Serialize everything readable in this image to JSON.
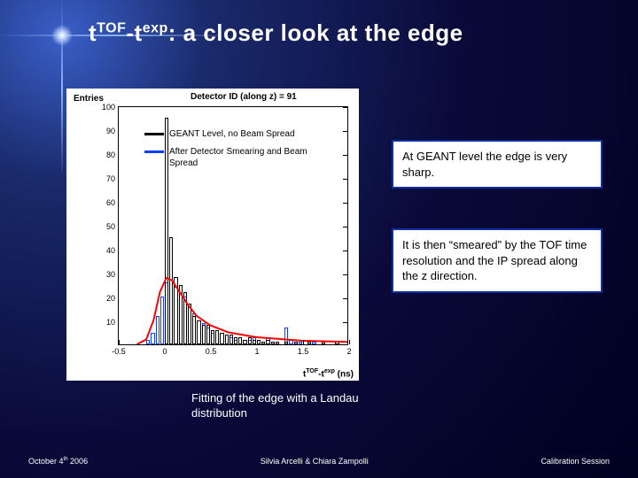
{
  "title": {
    "pre": "t",
    "sup1": "TOF",
    "mid": "-t",
    "sup2": "exp",
    "post": ": a closer look at the edge"
  },
  "chart": {
    "type": "histogram",
    "detector_title": "Detector ID (along z) = 91",
    "ylabel": "Entries",
    "xlabel_pre": "t",
    "xlabel_sup1": "TOF",
    "xlabel_mid": "-t",
    "xlabel_sup2": "exp",
    "xlabel_post": " (ns)",
    "xlim": [
      -0.5,
      2.0
    ],
    "ylim": [
      0,
      100
    ],
    "xticks": [
      -0.5,
      0,
      0.5,
      1,
      1.5,
      2
    ],
    "yticks": [
      10,
      20,
      30,
      40,
      50,
      60,
      70,
      80,
      90,
      100
    ],
    "bin_width": 0.05,
    "legend": [
      {
        "color": "#000000",
        "label": "GEANT Level, no Beam Spread"
      },
      {
        "color": "#1040ff",
        "label": "After Detector Smearing and Beam Spread"
      }
    ],
    "series_black": {
      "color": "#000000",
      "bins": [
        {
          "x": 0.0,
          "y": 95
        },
        {
          "x": 0.05,
          "y": 45
        },
        {
          "x": 0.1,
          "y": 28
        },
        {
          "x": 0.15,
          "y": 25
        },
        {
          "x": 0.2,
          "y": 22
        },
        {
          "x": 0.25,
          "y": 17
        },
        {
          "x": 0.3,
          "y": 12
        },
        {
          "x": 0.35,
          "y": 10
        },
        {
          "x": 0.4,
          "y": 8
        },
        {
          "x": 0.45,
          "y": 8
        },
        {
          "x": 0.5,
          "y": 6
        },
        {
          "x": 0.55,
          "y": 6
        },
        {
          "x": 0.6,
          "y": 5
        },
        {
          "x": 0.65,
          "y": 4
        },
        {
          "x": 0.7,
          "y": 4
        },
        {
          "x": 0.75,
          "y": 3
        },
        {
          "x": 0.8,
          "y": 3
        },
        {
          "x": 0.85,
          "y": 2
        },
        {
          "x": 0.9,
          "y": 3
        },
        {
          "x": 0.95,
          "y": 2
        },
        {
          "x": 1.0,
          "y": 2
        },
        {
          "x": 1.05,
          "y": 1
        },
        {
          "x": 1.1,
          "y": 2
        },
        {
          "x": 1.15,
          "y": 1
        },
        {
          "x": 1.2,
          "y": 1
        },
        {
          "x": 1.3,
          "y": 1
        },
        {
          "x": 1.4,
          "y": 1
        },
        {
          "x": 1.55,
          "y": 1
        },
        {
          "x": 1.7,
          "y": 1
        },
        {
          "x": 1.85,
          "y": 1
        }
      ]
    },
    "series_blue": {
      "color": "#1040ff",
      "bins": [
        {
          "x": -0.2,
          "y": 2
        },
        {
          "x": -0.15,
          "y": 5
        },
        {
          "x": -0.1,
          "y": 12
        },
        {
          "x": -0.05,
          "y": 20
        },
        {
          "x": 0.0,
          "y": 26
        },
        {
          "x": 0.05,
          "y": 27
        },
        {
          "x": 0.1,
          "y": 24
        },
        {
          "x": 0.15,
          "y": 25
        },
        {
          "x": 0.2,
          "y": 20
        },
        {
          "x": 0.25,
          "y": 17
        },
        {
          "x": 0.3,
          "y": 13
        },
        {
          "x": 0.35,
          "y": 10
        },
        {
          "x": 0.4,
          "y": 9
        },
        {
          "x": 0.45,
          "y": 7
        },
        {
          "x": 0.5,
          "y": 5
        },
        {
          "x": 0.55,
          "y": 6
        },
        {
          "x": 0.6,
          "y": 5
        },
        {
          "x": 0.65,
          "y": 4
        },
        {
          "x": 0.7,
          "y": 3
        },
        {
          "x": 0.75,
          "y": 2
        },
        {
          "x": 0.8,
          "y": 3
        },
        {
          "x": 0.85,
          "y": 2
        },
        {
          "x": 0.9,
          "y": 2
        },
        {
          "x": 0.95,
          "y": 3
        },
        {
          "x": 1.0,
          "y": 2
        },
        {
          "x": 1.05,
          "y": 1
        },
        {
          "x": 1.1,
          "y": 3
        },
        {
          "x": 1.2,
          "y": 1
        },
        {
          "x": 1.3,
          "y": 7
        },
        {
          "x": 1.35,
          "y": 2
        },
        {
          "x": 1.45,
          "y": 1
        },
        {
          "x": 1.6,
          "y": 1
        }
      ]
    },
    "fit_curve": {
      "color": "#ff0000",
      "width": 2,
      "points": [
        {
          "x": -0.3,
          "y": 0
        },
        {
          "x": -0.2,
          "y": 2
        },
        {
          "x": -0.12,
          "y": 10
        },
        {
          "x": -0.05,
          "y": 22
        },
        {
          "x": 0.02,
          "y": 28
        },
        {
          "x": 0.08,
          "y": 27
        },
        {
          "x": 0.15,
          "y": 23
        },
        {
          "x": 0.25,
          "y": 17
        },
        {
          "x": 0.35,
          "y": 12
        },
        {
          "x": 0.5,
          "y": 8
        },
        {
          "x": 0.7,
          "y": 5
        },
        {
          "x": 1.0,
          "y": 3
        },
        {
          "x": 1.5,
          "y": 1.5
        },
        {
          "x": 2.0,
          "y": 1
        }
      ]
    },
    "background_color": "#ffffff"
  },
  "notes": {
    "n1": "At GEANT level the edge is very sharp.",
    "n2": "It is then “smeared” by the TOF time resolution and the IP spread along the z direction."
  },
  "fit_label": "Fitting of the edge with a Landau distribution",
  "footer": {
    "left_pre": "October 4",
    "left_sup": "th",
    "left_post": " 2006",
    "center": "Silvia Arcelli & Chiara Zampolli",
    "right": "Calibration Session"
  }
}
